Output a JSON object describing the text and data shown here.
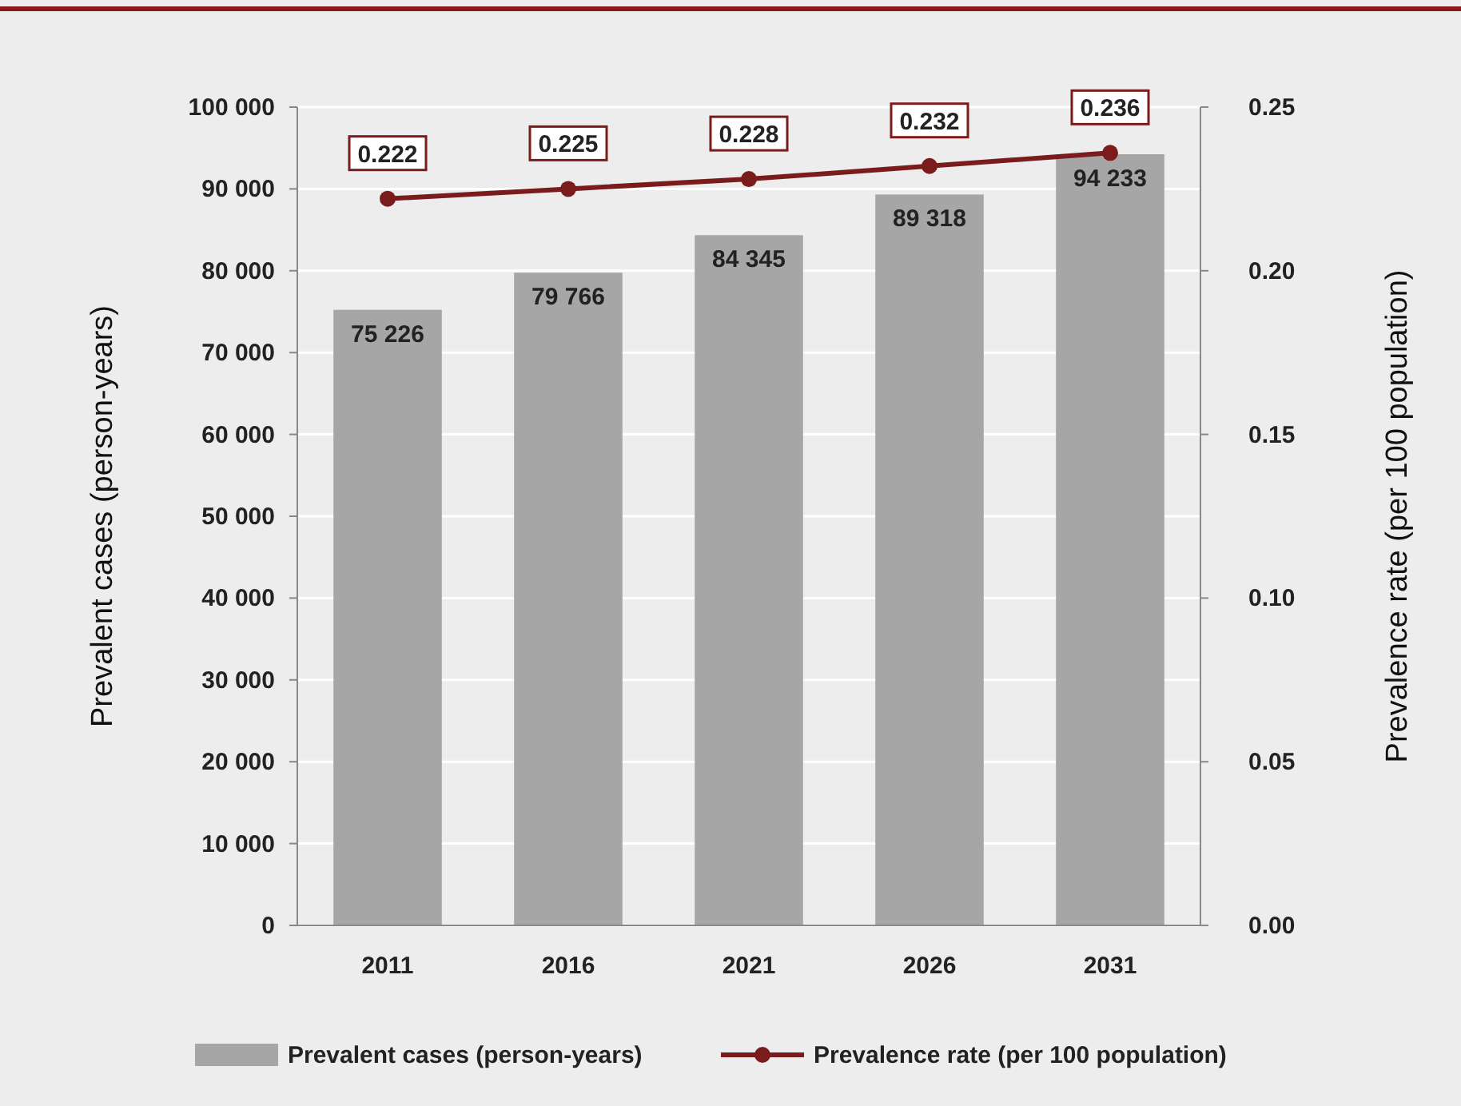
{
  "chart_data": {
    "type": "bar",
    "categories": [
      "2011",
      "2016",
      "2021",
      "2026",
      "2031"
    ],
    "ylabel": "Prevalent cases (person-years)",
    "y2label": "Prevalence rate (per 100 population)",
    "ylim": [
      0,
      100000
    ],
    "yticks": [
      {
        "value": 0,
        "label": "0"
      },
      {
        "value": 10000,
        "label": "10 000"
      },
      {
        "value": 20000,
        "label": "20 000"
      },
      {
        "value": 30000,
        "label": "30 000"
      },
      {
        "value": 40000,
        "label": "40 000"
      },
      {
        "value": 50000,
        "label": "50 000"
      },
      {
        "value": 60000,
        "label": "60 000"
      },
      {
        "value": 70000,
        "label": "70 000"
      },
      {
        "value": 80000,
        "label": "80 000"
      },
      {
        "value": 90000,
        "label": "90 000"
      },
      {
        "value": 100000,
        "label": "100 000"
      }
    ],
    "y2lim": [
      0,
      0.25
    ],
    "y2ticks": [
      {
        "value": 0,
        "label": "0.00"
      },
      {
        "value": 0.05,
        "label": "0.05"
      },
      {
        "value": 0.1,
        "label": "0.10"
      },
      {
        "value": 0.15,
        "label": "0.15"
      },
      {
        "value": 0.2,
        "label": "0.20"
      },
      {
        "value": 0.25,
        "label": "0.25"
      }
    ],
    "grid": "y",
    "legend": "bottom",
    "series": [
      {
        "name": "Prevalent cases (person-years)",
        "color": "#a6a6a6",
        "values": [
          75226,
          79766,
          84345,
          89318,
          94233
        ],
        "value_labels": [
          "75 226",
          "79 766",
          "84 345",
          "89 318",
          "94 233"
        ]
      },
      {
        "name": "Prevalence rate (per 100 population)",
        "type": "line",
        "axis": "y2",
        "color": "#7b1c1c",
        "marker": "circle",
        "line_style": "solid",
        "values": [
          0.222,
          0.225,
          0.228,
          0.232,
          0.236
        ],
        "value_labels": [
          "0.222",
          "0.225",
          "0.228",
          "0.232",
          "0.236"
        ]
      }
    ]
  }
}
